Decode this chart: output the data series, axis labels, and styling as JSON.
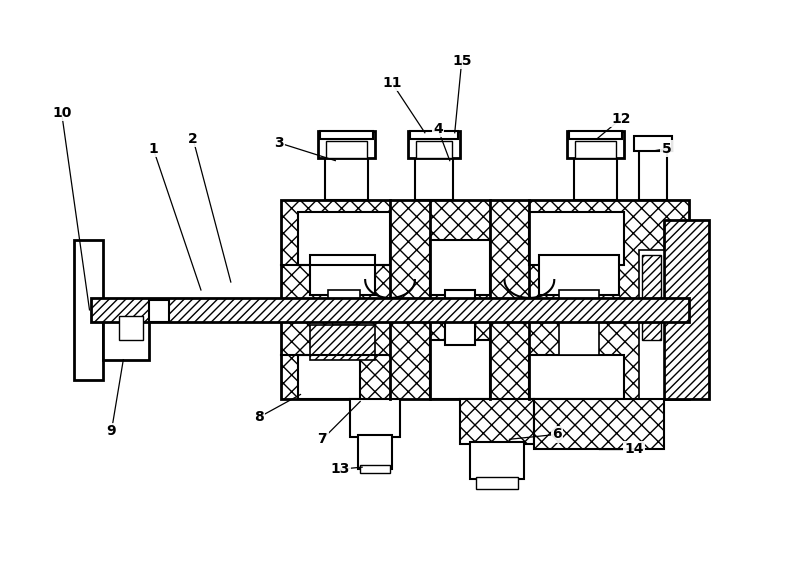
{
  "bg_color": "#ffffff",
  "fig_width": 8.0,
  "fig_height": 5.81,
  "dpi": 100
}
